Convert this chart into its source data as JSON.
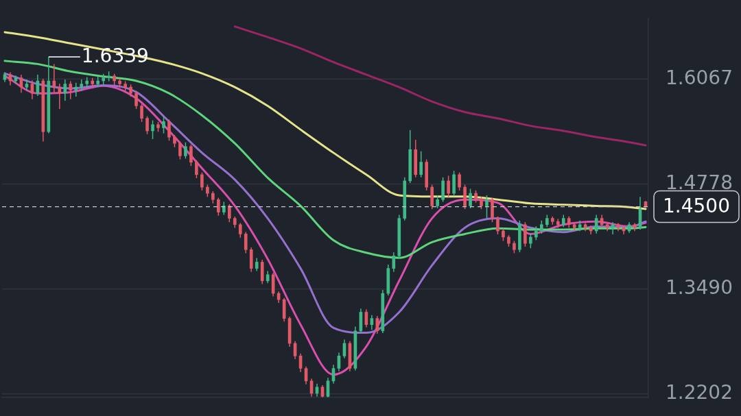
{
  "chart_data": {
    "type": "candlestick",
    "categories": [
      null,
      null,
      null,
      null,
      null,
      null,
      null,
      null,
      null,
      null,
      null,
      null,
      null,
      null,
      null,
      null,
      null,
      null,
      null,
      null,
      null,
      null,
      null,
      null,
      null,
      null,
      null,
      null,
      null,
      null,
      null,
      null,
      null,
      null,
      null,
      null,
      null,
      null,
      null,
      null,
      null,
      null,
      null,
      null,
      null,
      null,
      null,
      null,
      null,
      null,
      null,
      null,
      null,
      null,
      null,
      null,
      null,
      null,
      null,
      null,
      null,
      null,
      null,
      null,
      null,
      null,
      null,
      null,
      null,
      null,
      null,
      null,
      null,
      null,
      null,
      null,
      null,
      null,
      null,
      null,
      null,
      null,
      null,
      null,
      null,
      null,
      null,
      null,
      null,
      null,
      null,
      null,
      null,
      null,
      null,
      null,
      null,
      null,
      null,
      null,
      null,
      null,
      null,
      null,
      null,
      null,
      null,
      null,
      null,
      null,
      null,
      null,
      null,
      null,
      null,
      null,
      null,
      null
    ],
    "ohlc": [
      [
        1.606,
        1.615,
        1.603,
        1.6121
      ],
      [
        1.6121,
        1.615,
        1.599,
        1.6044
      ],
      [
        1.6044,
        1.611,
        1.601,
        1.6082
      ],
      [
        1.6082,
        1.612,
        1.59,
        1.5967
      ],
      [
        1.5967,
        1.606,
        1.593,
        1.6006
      ],
      [
        1.6006,
        1.605,
        1.582,
        1.5891
      ],
      [
        1.5891,
        1.612,
        1.586,
        1.6044
      ],
      [
        1.6044,
        1.607,
        1.53,
        1.542
      ],
      [
        1.542,
        1.6339,
        1.54,
        1.6044
      ],
      [
        1.6044,
        1.625,
        1.59,
        1.5967
      ],
      [
        1.5967,
        1.601,
        1.57,
        1.5891
      ],
      [
        1.5891,
        1.606,
        1.58,
        1.6006
      ],
      [
        1.6006,
        1.604,
        1.582,
        1.5929
      ],
      [
        1.5929,
        1.602,
        1.585,
        1.5967
      ],
      [
        1.5967,
        1.606,
        1.592,
        1.6006
      ],
      [
        1.6006,
        1.609,
        1.596,
        1.6044
      ],
      [
        1.6044,
        1.608,
        1.595,
        1.6006
      ],
      [
        1.6006,
        1.61,
        1.597,
        1.6044
      ],
      [
        1.6044,
        1.613,
        1.6,
        1.6082
      ],
      [
        1.6082,
        1.616,
        1.604,
        1.6105
      ],
      [
        1.6105,
        1.613,
        1.599,
        1.6044
      ],
      [
        1.6044,
        1.607,
        1.596,
        1.6006
      ],
      [
        1.6006,
        1.604,
        1.592,
        1.5967
      ],
      [
        1.5967,
        1.6,
        1.585,
        1.5891
      ],
      [
        1.5891,
        1.592,
        1.57,
        1.5737
      ],
      [
        1.5737,
        1.576,
        1.554,
        1.5584
      ],
      [
        1.5584,
        1.561,
        1.539,
        1.543
      ],
      [
        1.543,
        1.556,
        1.533,
        1.5507
      ],
      [
        1.5507,
        1.554,
        1.542,
        1.5469
      ],
      [
        1.5469,
        1.56,
        1.54,
        1.5545
      ],
      [
        1.5545,
        1.557,
        1.531,
        1.5354
      ],
      [
        1.5354,
        1.538,
        1.523,
        1.5277
      ],
      [
        1.5277,
        1.53,
        1.508,
        1.5124
      ],
      [
        1.5124,
        1.529,
        1.509,
        1.5239
      ],
      [
        1.5239,
        1.526,
        1.5,
        1.5047
      ],
      [
        1.5047,
        1.507,
        1.485,
        1.4894
      ],
      [
        1.4894,
        1.492,
        1.47,
        1.474
      ],
      [
        1.474,
        1.477,
        1.462,
        1.4664
      ],
      [
        1.4664,
        1.469,
        1.454,
        1.4587
      ],
      [
        1.4587,
        1.461,
        1.439,
        1.4433
      ],
      [
        1.4433,
        1.456,
        1.44,
        1.451
      ],
      [
        1.451,
        1.453,
        1.431,
        1.4357
      ],
      [
        1.4357,
        1.438,
        1.424,
        1.428
      ],
      [
        1.428,
        1.43,
        1.412,
        1.4165
      ],
      [
        1.4165,
        1.419,
        1.393,
        1.3973
      ],
      [
        1.3973,
        1.4,
        1.37,
        1.3743
      ],
      [
        1.3743,
        1.387,
        1.371,
        1.382
      ],
      [
        1.382,
        1.385,
        1.355,
        1.359
      ],
      [
        1.359,
        1.371,
        1.356,
        1.3666
      ],
      [
        1.3666,
        1.369,
        1.34,
        1.3436
      ],
      [
        1.3436,
        1.346,
        1.332,
        1.336
      ],
      [
        1.336,
        1.338,
        1.309,
        1.3129
      ],
      [
        1.3129,
        1.315,
        1.278,
        1.2823
      ],
      [
        1.2823,
        1.285,
        1.263,
        1.2669
      ],
      [
        1.2669,
        1.27,
        1.247,
        1.2516
      ],
      [
        1.2516,
        1.254,
        1.232,
        1.2362
      ],
      [
        1.2362,
        1.239,
        1.217,
        1.2209
      ],
      [
        1.2209,
        1.233,
        1.217,
        1.2286
      ],
      [
        1.2286,
        1.231,
        1.216,
        1.2171
      ],
      [
        1.2171,
        1.24,
        1.216,
        1.2362
      ],
      [
        1.2362,
        1.256,
        1.233,
        1.2516
      ],
      [
        1.2516,
        1.271,
        1.248,
        1.2669
      ],
      [
        1.2669,
        1.287,
        1.264,
        1.2823
      ],
      [
        1.2823,
        1.285,
        1.248,
        1.2516
      ],
      [
        1.2516,
        1.303,
        1.249,
        1.2976
      ],
      [
        1.2976,
        1.325,
        1.295,
        1.3206
      ],
      [
        1.3206,
        1.324,
        1.302,
        1.3053
      ],
      [
        1.3053,
        1.317,
        1.299,
        1.3129
      ],
      [
        1.3129,
        1.316,
        1.294,
        1.2976
      ],
      [
        1.2976,
        1.348,
        1.295,
        1.3436
      ],
      [
        1.3436,
        1.379,
        1.341,
        1.3743
      ],
      [
        1.3743,
        1.394,
        1.37,
        1.3897
      ],
      [
        1.3897,
        1.44,
        1.386,
        1.4357
      ],
      [
        1.4357,
        1.486,
        1.433,
        1.4817
      ],
      [
        1.4817,
        1.544,
        1.479,
        1.52
      ],
      [
        1.52,
        1.532,
        1.486,
        1.4894
      ],
      [
        1.4894,
        1.518,
        1.486,
        1.5047
      ],
      [
        1.5047,
        1.508,
        1.47,
        1.474
      ],
      [
        1.474,
        1.477,
        1.447,
        1.451
      ],
      [
        1.451,
        1.464,
        1.448,
        1.4587
      ],
      [
        1.4587,
        1.486,
        1.456,
        1.4817
      ],
      [
        1.4817,
        1.488,
        1.462,
        1.4664
      ],
      [
        1.4664,
        1.494,
        1.463,
        1.4894
      ],
      [
        1.4894,
        1.492,
        1.47,
        1.474
      ],
      [
        1.474,
        1.477,
        1.447,
        1.451
      ],
      [
        1.451,
        1.472,
        1.448,
        1.4664
      ],
      [
        1.4664,
        1.47,
        1.455,
        1.4587
      ],
      [
        1.4587,
        1.462,
        1.447,
        1.451
      ],
      [
        1.451,
        1.464,
        1.436,
        1.4587
      ],
      [
        1.4587,
        1.461,
        1.431,
        1.4357
      ],
      [
        1.4357,
        1.438,
        1.416,
        1.4203
      ],
      [
        1.4203,
        1.423,
        1.408,
        1.4127
      ],
      [
        1.4127,
        1.415,
        1.401,
        1.405
      ],
      [
        1.405,
        1.408,
        1.393,
        1.3973
      ],
      [
        1.3973,
        1.433,
        1.394,
        1.428
      ],
      [
        1.428,
        1.431,
        1.401,
        1.405
      ],
      [
        1.405,
        1.417,
        1.399,
        1.4127
      ],
      [
        1.4127,
        1.426,
        1.409,
        1.4203
      ],
      [
        1.4203,
        1.433,
        1.417,
        1.428
      ],
      [
        1.428,
        1.44,
        1.425,
        1.4357
      ],
      [
        1.4357,
        1.438,
        1.428,
        1.4318
      ],
      [
        1.4318,
        1.435,
        1.424,
        1.428
      ],
      [
        1.428,
        1.44,
        1.425,
        1.4357
      ],
      [
        1.4357,
        1.438,
        1.424,
        1.428
      ],
      [
        1.428,
        1.431,
        1.42,
        1.4242
      ],
      [
        1.4242,
        1.433,
        1.42,
        1.428
      ],
      [
        1.428,
        1.43,
        1.42,
        1.4242
      ],
      [
        1.4242,
        1.427,
        1.416,
        1.4203
      ],
      [
        1.4203,
        1.44,
        1.417,
        1.4357
      ],
      [
        1.4357,
        1.44,
        1.425,
        1.428
      ],
      [
        1.428,
        1.431,
        1.42,
        1.4242
      ],
      [
        1.4242,
        1.431,
        1.416,
        1.428
      ],
      [
        1.428,
        1.43,
        1.42,
        1.4242
      ],
      [
        1.4242,
        1.427,
        1.416,
        1.4203
      ],
      [
        1.4203,
        1.431,
        1.418,
        1.428
      ],
      [
        1.428,
        1.43,
        1.42,
        1.4242
      ],
      [
        1.4242,
        1.462,
        1.422,
        1.4472
      ],
      [
        1.456,
        1.457,
        1.448,
        1.45
      ]
    ],
    "colors": [
      "#40b887",
      "#e05a68",
      "#40b887",
      "#e05a68",
      "#40b887",
      "#e05a68",
      "#40b887",
      "#e05a68",
      "#40b887",
      "#e05a68",
      "#e05a68",
      "#40b887",
      "#e05a68",
      "#40b887",
      "#40b887",
      "#40b887",
      "#e05a68",
      "#40b887",
      "#40b887",
      "#40b887",
      "#e05a68",
      "#e05a68",
      "#e05a68",
      "#e05a68",
      "#e05a68",
      "#e05a68",
      "#e05a68",
      "#40b887",
      "#e05a68",
      "#40b887",
      "#e05a68",
      "#e05a68",
      "#e05a68",
      "#40b887",
      "#e05a68",
      "#e05a68",
      "#e05a68",
      "#e05a68",
      "#e05a68",
      "#e05a68",
      "#40b887",
      "#e05a68",
      "#e05a68",
      "#e05a68",
      "#e05a68",
      "#e05a68",
      "#40b887",
      "#e05a68",
      "#40b887",
      "#e05a68",
      "#e05a68",
      "#e05a68",
      "#e05a68",
      "#e05a68",
      "#e05a68",
      "#e05a68",
      "#e05a68",
      "#40b887",
      "#e05a68",
      "#40b887",
      "#40b887",
      "#40b887",
      "#40b887",
      "#e05a68",
      "#40b887",
      "#40b887",
      "#e05a68",
      "#40b887",
      "#e05a68",
      "#40b887",
      "#40b887",
      "#40b887",
      "#40b887",
      "#40b887",
      "#40b887",
      "#e05a68",
      "#40b887",
      "#e05a68",
      "#e05a68",
      "#40b887",
      "#40b887",
      "#e05a68",
      "#40b887",
      "#e05a68",
      "#e05a68",
      "#40b887",
      "#e05a68",
      "#e05a68",
      "#40b887",
      "#e05a68",
      "#e05a68",
      "#e05a68",
      "#e05a68",
      "#e05a68",
      "#40b887",
      "#e05a68",
      "#40b887",
      "#40b887",
      "#40b887",
      "#40b887",
      "#e05a68",
      "#e05a68",
      "#40b887",
      "#e05a68",
      "#e05a68",
      "#40b887",
      "#e05a68",
      "#e05a68",
      "#40b887",
      "#e05a68",
      "#e05a68",
      "#40b887",
      "#e05a68",
      "#e05a68",
      "#40b887",
      "#e05a68",
      "#40b887",
      "#e05a68"
    ],
    "series": [
      {
        "type": "line",
        "color": "#e6e38a",
        "values": [
          1.6642,
          null,
          null,
          null,
          null,
          null,
          1.6581,
          null,
          null,
          null,
          null,
          null,
          1.6504,
          null,
          null,
          null,
          null,
          null,
          1.6428,
          null,
          null,
          null,
          null,
          null,
          1.6351,
          null,
          null,
          null,
          null,
          null,
          1.6259,
          null,
          null,
          null,
          null,
          null,
          1.6136,
          null,
          null,
          null,
          null,
          null,
          1.5967,
          null,
          null,
          null,
          null,
          null,
          1.5737,
          null,
          null,
          null,
          null,
          null,
          1.5446,
          null,
          null,
          null,
          null,
          null,
          1.5162,
          null,
          null,
          null,
          null,
          null,
          1.4894,
          null,
          null,
          null,
          null,
          null,
          1.464,
          null,
          null,
          null,
          null,
          null,
          1.4625,
          null,
          null,
          null,
          null,
          null,
          1.4625,
          null,
          null,
          null,
          null,
          null,
          1.4587,
          null,
          null,
          null,
          null,
          null,
          1.4541,
          null,
          null,
          null,
          null,
          null,
          1.4525,
          null,
          null,
          null,
          null,
          null,
          1.451,
          null,
          null,
          null,
          null,
          null,
          1.4495,
          null,
          null,
          1.4472
        ]
      },
      {
        "type": "line",
        "color": "#5ed47c",
        "values": [
          1.6289,
          null,
          null,
          null,
          null,
          null,
          1.6251,
          null,
          null,
          null,
          null,
          null,
          1.6159,
          null,
          null,
          null,
          null,
          null,
          1.6098,
          null,
          null,
          null,
          null,
          null,
          1.6044,
          null,
          null,
          null,
          null,
          null,
          1.5891,
          null,
          null,
          null,
          null,
          null,
          1.5622,
          null,
          null,
          null,
          null,
          null,
          1.5277,
          null,
          null,
          null,
          null,
          null,
          1.4855,
          null,
          null,
          null,
          null,
          null,
          1.451,
          null,
          null,
          null,
          null,
          null,
          1.4088,
          null,
          null,
          null,
          null,
          null,
          1.3935,
          null,
          null,
          null,
          null,
          null,
          1.3873,
          null,
          null,
          null,
          null,
          null,
          1.4065,
          null,
          null,
          null,
          null,
          null,
          1.4165,
          null,
          null,
          null,
          null,
          null,
          1.4234,
          null,
          null,
          null,
          null,
          null,
          1.4219,
          null,
          null,
          null,
          null,
          null,
          1.4219,
          null,
          null,
          null,
          null,
          null,
          1.4234,
          null,
          null,
          null,
          null,
          null,
          1.4234,
          null,
          null,
          1.4249
        ]
      },
      {
        "type": "line",
        "color": "#9670cf",
        "values": [
          1.6136,
          null,
          null,
          null,
          null,
          null,
          1.6006,
          null,
          null,
          null,
          null,
          null,
          1.5952,
          null,
          null,
          null,
          null,
          null,
          1.599,
          null,
          null,
          null,
          null,
          null,
          1.5906,
          null,
          null,
          null,
          null,
          null,
          1.5545,
          null,
          null,
          null,
          null,
          null,
          1.5162,
          null,
          null,
          null,
          null,
          null,
          1.4832,
          null,
          null,
          null,
          null,
          null,
          1.4357,
          null,
          null,
          null,
          null,
          null,
          1.3743,
          null,
          null,
          null,
          null,
          null,
          1.3014,
          null,
          null,
          null,
          null,
          null,
          1.2953,
          null,
          null,
          null,
          null,
          null,
          1.3206,
          null,
          null,
          null,
          null,
          null,
          1.3781,
          null,
          null,
          null,
          null,
          null,
          1.4242,
          null,
          null,
          null,
          null,
          null,
          1.4357,
          null,
          null,
          null,
          null,
          null,
          1.4242,
          null,
          null,
          null,
          null,
          null,
          1.4188,
          null,
          null,
          null,
          null,
          null,
          1.4257,
          null,
          null,
          null,
          null,
          null,
          1.4249,
          null,
          null,
          1.4318
        ]
      },
      {
        "type": "line",
        "color": "#d94fae",
        "values": [
          1.6105,
          null,
          null,
          null,
          null,
          null,
          1.5891,
          null,
          null,
          null,
          null,
          null,
          1.5906,
          null,
          null,
          null,
          null,
          null,
          1.5983,
          null,
          null,
          null,
          null,
          null,
          1.5829,
          null,
          null,
          null,
          null,
          null,
          1.543,
          null,
          null,
          null,
          null,
          null,
          1.4971,
          null,
          null,
          null,
          null,
          null,
          1.451,
          null,
          null,
          null,
          null,
          null,
          1.3858,
          null,
          null,
          null,
          null,
          null,
          1.3053,
          null,
          null,
          null,
          null,
          null,
          1.2439,
          null,
          null,
          null,
          null,
          null,
          1.2784,
          null,
          null,
          null,
          null,
          null,
          1.359,
          null,
          null,
          null,
          null,
          null,
          1.4357,
          null,
          null,
          null,
          null,
          null,
          1.4587,
          null,
          null,
          null,
          null,
          null,
          1.4548,
          null,
          null,
          null,
          null,
          null,
          1.4165,
          null,
          null,
          null,
          null,
          null,
          1.428,
          null,
          null,
          null,
          null,
          null,
          1.4318,
          null,
          null,
          null,
          null,
          null,
          1.4257,
          null,
          null,
          1.4303
        ]
      },
      {
        "type": "line",
        "color": "#9b2567",
        "values": [
          null,
          null,
          null,
          null,
          null,
          null,
          null,
          null,
          null,
          null,
          null,
          null,
          null,
          null,
          null,
          null,
          null,
          null,
          null,
          null,
          null,
          null,
          null,
          null,
          null,
          null,
          null,
          null,
          null,
          null,
          null,
          null,
          null,
          null,
          null,
          null,
          null,
          null,
          null,
          null,
          null,
          null,
          1.6711,
          null,
          null,
          null,
          null,
          null,
          1.6581,
          null,
          null,
          null,
          null,
          null,
          1.6443,
          null,
          null,
          null,
          null,
          null,
          1.6274,
          null,
          null,
          null,
          null,
          null,
          1.6121,
          null,
          null,
          null,
          null,
          null,
          1.5967,
          null,
          null,
          null,
          null,
          null,
          1.5791,
          null,
          null,
          null,
          null,
          null,
          1.5661,
          null,
          null,
          null,
          null,
          null,
          1.5584,
          null,
          null,
          null,
          null,
          null,
          1.5492,
          null,
          null,
          null,
          null,
          null,
          1.543,
          null,
          null,
          null,
          null,
          null,
          1.5354,
          null,
          null,
          null,
          null,
          null,
          1.5292,
          null,
          null,
          1.5254
        ]
      }
    ],
    "ylim": [
      1.2157,
      1.6811
    ],
    "yticks": [
      {
        "value": 1.6067,
        "label": "1.6067"
      },
      {
        "value": 1.4778,
        "label": "1.4778"
      },
      {
        "value": 1.349,
        "label": "1.3490"
      },
      {
        "value": 1.2202,
        "label": "1.2202"
      }
    ],
    "ref_lines": [
      {
        "axis": "y",
        "value": 1.45,
        "label": "1.4500",
        "line_style": "dashed",
        "color": "#c8ccd2"
      }
    ],
    "annotations": [
      "1.6339"
    ],
    "grid": "y",
    "legend": false,
    "marker": "none",
    "tick_labels": "y"
  }
}
